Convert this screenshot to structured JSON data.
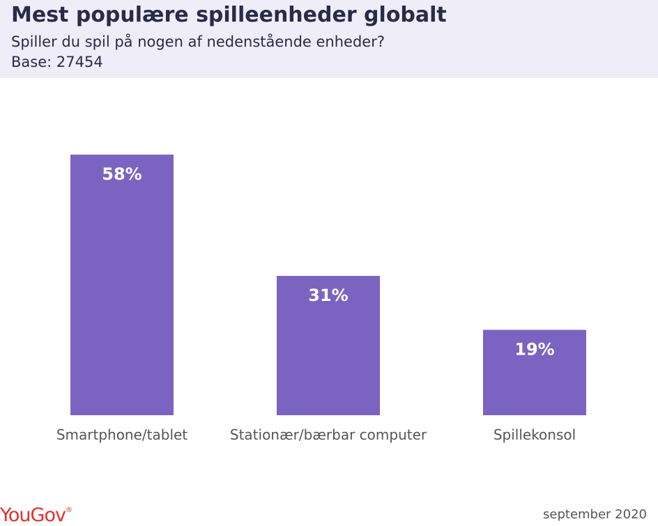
{
  "header": {
    "title": "Mest populære spilleenheder globalt",
    "subtitle": "Spiller du spil på nogen af nedenstående enheder?",
    "base": "Base: 27454"
  },
  "footer": {
    "logo_text": "YouGov",
    "logo_mark": "®",
    "date": "september 2020"
  },
  "colors": {
    "header_bg": "#efedf7",
    "bar": "#7b63c2",
    "logo": "#e3302f"
  },
  "chart_data": {
    "type": "bar",
    "title": "Mest populære spilleenheder globalt",
    "categories": [
      "Smartphone/tablet",
      "Stationær/bærbar computer",
      "Spillekonsol"
    ],
    "values": [
      58,
      31,
      19
    ],
    "value_labels": [
      "58%",
      "31%",
      "19%"
    ],
    "unit": "%",
    "ylim": [
      0,
      100
    ],
    "grid": false,
    "legend": "none"
  }
}
